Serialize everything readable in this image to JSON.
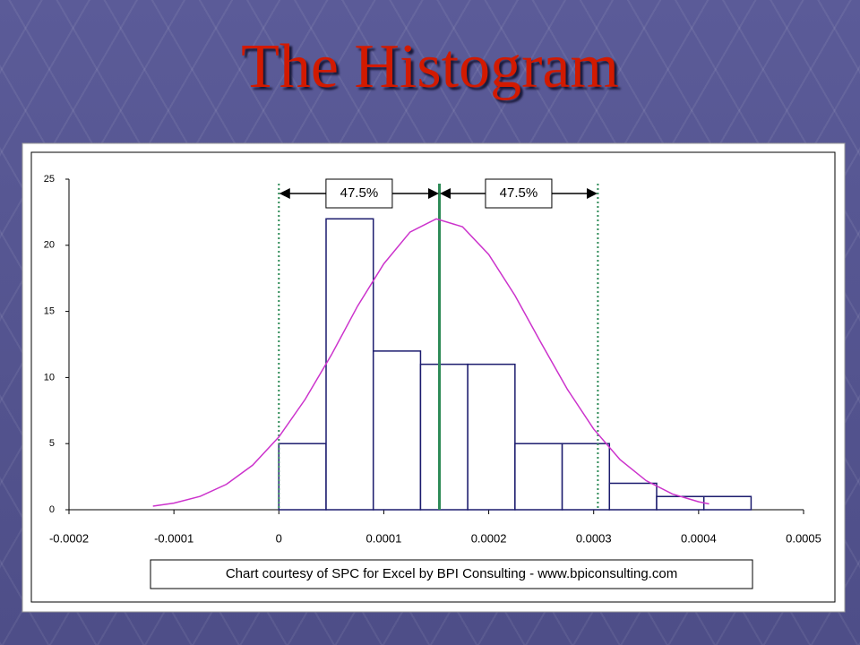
{
  "chart_data": {
    "type": "histogram",
    "title": "The Histogram",
    "bins": [
      0,
      4.5e-05,
      9e-05,
      0.000135,
      0.00018,
      0.000225,
      0.00027,
      0.000315,
      0.00036,
      0.000405,
      0.00045
    ],
    "values": [
      5,
      22,
      12,
      11,
      11,
      5,
      5,
      2,
      1,
      1
    ],
    "color": "#ffffff",
    "edge_color": "#1c1c6e",
    "curve": {
      "color": "#cc33cc",
      "x": [
        -0.00012,
        -0.0001,
        -7.5e-05,
        -5e-05,
        -2.5e-05,
        0,
        2.5e-05,
        5e-05,
        7.5e-05,
        0.0001,
        0.000125,
        0.00015,
        0.000175,
        0.0002,
        0.000225,
        0.00025,
        0.000275,
        0.0003,
        0.000325,
        0.00035,
        0.000375,
        0.0004,
        0.00041
      ],
      "y": [
        0.27,
        0.5,
        1.01,
        1.92,
        3.37,
        5.5,
        8.34,
        11.7,
        15.4,
        18.6,
        21.0,
        22.0,
        21.4,
        19.3,
        16.2,
        12.6,
        9.1,
        6.1,
        3.8,
        2.2,
        1.19,
        0.6,
        0.44
      ]
    },
    "reference_lines": [
      {
        "x": 0,
        "style": "dotted"
      },
      {
        "x": 0.000153,
        "style": "solid"
      },
      {
        "x": 0.000304,
        "style": "dotted"
      }
    ],
    "reference_color": "#2e8b57",
    "interval_labels": [
      "47.5%",
      "47.5%"
    ],
    "xlim": [
      -0.0002,
      0.0005
    ],
    "xticks": [
      -0.0002,
      -0.0001,
      0,
      0.0001,
      0.0002,
      0.0003,
      0.0004,
      0.0005
    ],
    "ylim": [
      0,
      25
    ],
    "yticks": [
      0,
      5,
      10,
      15,
      20,
      25
    ],
    "caption": "Chart courtesy of SPC for Excel by BPI Consulting - www.bpiconsulting.com"
  }
}
